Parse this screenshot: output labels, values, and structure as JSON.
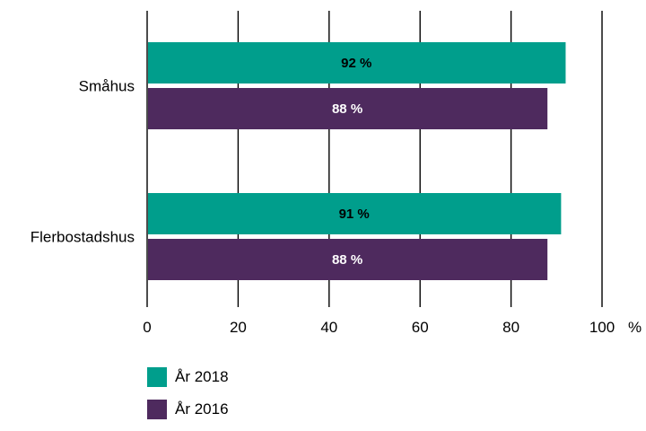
{
  "chart_data": {
    "type": "bar",
    "orientation": "horizontal",
    "categories": [
      "Småhus",
      "Flerbostadshus"
    ],
    "series": [
      {
        "name": "År 2018",
        "values": [
          92,
          91
        ],
        "labels": [
          "92 %",
          "91 %"
        ],
        "color": "#009e8c",
        "label_color": "#000000"
      },
      {
        "name": "År 2016",
        "values": [
          88,
          88
        ],
        "labels": [
          "88 %",
          "88 %"
        ],
        "color": "#4e2a5e",
        "label_color": "#ffffff"
      }
    ],
    "x_ticks": [
      "0",
      "20",
      "40",
      "60",
      "80",
      "100"
    ],
    "x_unit": "%",
    "xlim": [
      0,
      100
    ],
    "grid": "vertical",
    "legend_position": "bottom-left"
  }
}
